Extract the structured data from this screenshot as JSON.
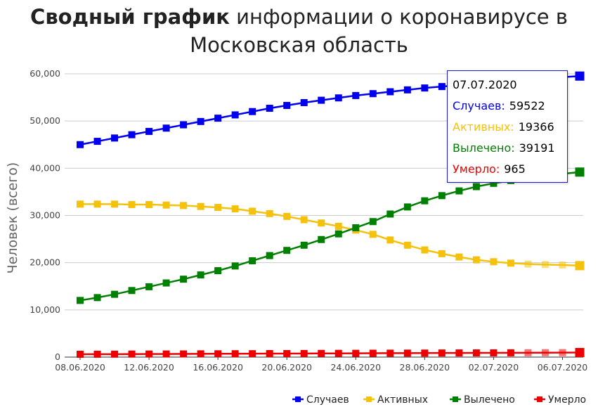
{
  "title": {
    "bold": "Сводный график",
    "rest": " информации о коронавирусе в",
    "line2": "Московская область"
  },
  "colors": {
    "cases": "#0000ee",
    "active": "#f4c20d",
    "recovered": "#008000",
    "deaths": "#ee0000",
    "grid": "#cccccc"
  },
  "tooltip": {
    "date": "07.07.2020",
    "rows": [
      {
        "label": "Случаев:",
        "value": "59522",
        "color": "#0000ee"
      },
      {
        "label": "Активных:",
        "value": "19366",
        "color": "#f4c20d"
      },
      {
        "label": "Вылечено:",
        "value": "39191",
        "color": "#008000"
      },
      {
        "label": "Умерло:",
        "value": "965",
        "color": "#ee0000"
      }
    ]
  },
  "chart_data": {
    "type": "line",
    "title": "Сводный график информации о коронавирусе в Московская область",
    "ylabel": "Человек (всего)",
    "xlabel": "",
    "ylim": [
      0,
      60000
    ],
    "yticks": [
      0,
      10000,
      20000,
      30000,
      40000,
      50000,
      60000
    ],
    "ytick_labels": [
      "0",
      "10,000",
      "20,000",
      "30,000",
      "40,000",
      "50,000",
      "60,000"
    ],
    "x": [
      "08.06.2020",
      "09.06.2020",
      "10.06.2020",
      "11.06.2020",
      "12.06.2020",
      "13.06.2020",
      "14.06.2020",
      "15.06.2020",
      "16.06.2020",
      "17.06.2020",
      "18.06.2020",
      "19.06.2020",
      "20.06.2020",
      "21.06.2020",
      "22.06.2020",
      "23.06.2020",
      "24.06.2020",
      "25.06.2020",
      "26.06.2020",
      "27.06.2020",
      "28.06.2020",
      "29.06.2020",
      "30.06.2020",
      "01.07.2020",
      "02.07.2020",
      "03.07.2020",
      "04.07.2020",
      "05.07.2020",
      "06.07.2020",
      "07.07.2020"
    ],
    "xtick_labels": [
      "08.06.2020",
      "12.06.2020",
      "16.06.2020",
      "20.06.2020",
      "24.06.2020",
      "28.06.2020",
      "02.07.2020",
      "06.07.2020"
    ],
    "xtick_index": [
      0,
      4,
      8,
      12,
      16,
      20,
      24,
      28
    ],
    "legend_position": "bottom-right",
    "grid": true,
    "series": [
      {
        "name": "Случаев",
        "key": "cases",
        "values": [
          45000,
          45700,
          46400,
          47100,
          47800,
          48500,
          49200,
          49900,
          50600,
          51300,
          52000,
          52700,
          53300,
          53900,
          54400,
          54900,
          55400,
          55800,
          56200,
          56600,
          57000,
          57300,
          57600,
          57900,
          58200,
          58500,
          58800,
          59100,
          59300,
          59522
        ]
      },
      {
        "name": "Активных",
        "key": "active",
        "values": [
          32400,
          32400,
          32400,
          32300,
          32300,
          32200,
          32100,
          31900,
          31700,
          31400,
          30900,
          30400,
          29800,
          29100,
          28400,
          27700,
          26900,
          26000,
          24800,
          23700,
          22700,
          21900,
          21200,
          20600,
          20200,
          19900,
          19700,
          19600,
          19500,
          19366
        ]
      },
      {
        "name": "Вылечено",
        "key": "recovered",
        "values": [
          12000,
          12600,
          13300,
          14100,
          14900,
          15700,
          16500,
          17400,
          18300,
          19300,
          20400,
          21500,
          22600,
          23700,
          24900,
          26100,
          27400,
          28700,
          30300,
          31800,
          33100,
          34200,
          35200,
          36100,
          36800,
          37400,
          37900,
          38400,
          38800,
          39191
        ]
      },
      {
        "name": "Умерло",
        "key": "deaths",
        "values": [
          600,
          610,
          620,
          640,
          650,
          660,
          670,
          690,
          700,
          710,
          720,
          740,
          750,
          760,
          780,
          790,
          800,
          820,
          830,
          840,
          850,
          870,
          880,
          890,
          900,
          910,
          920,
          935,
          950,
          965
        ]
      }
    ]
  }
}
